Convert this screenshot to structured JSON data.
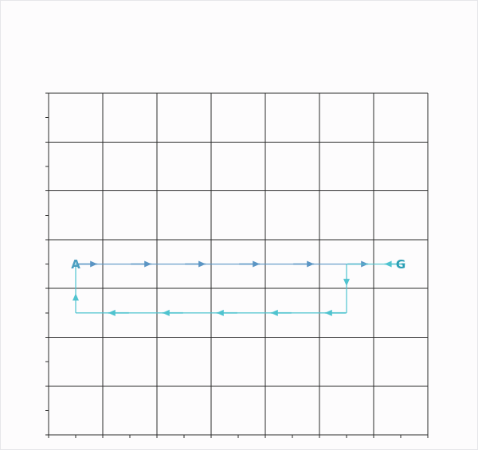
{
  "grid": {
    "columns": 7,
    "rows": 7,
    "minor_ticks_per_cell": 2
  },
  "markers": [
    {
      "label": "A",
      "col": 0.5,
      "row": 3.5,
      "color": "#4a9ec0"
    },
    {
      "label": "G",
      "col": 6.5,
      "row": 3.5,
      "color": "#2a9fb5"
    }
  ],
  "path": {
    "color_forward": "#5b95c4",
    "color_return": "#4fc3cf",
    "segments": [
      {
        "from": [
          0.5,
          3.5
        ],
        "to": [
          5.5,
          3.5
        ],
        "leg": "forward",
        "dir": "right",
        "arrows": [
          0.9,
          1.9,
          2.9,
          3.9,
          4.9,
          5.9
        ]
      },
      {
        "from": [
          6.5,
          3.5
        ],
        "to": [
          5.5,
          3.5
        ],
        "leg": "return",
        "dir": "left",
        "arrows": [
          6.2
        ]
      },
      {
        "from": [
          5.5,
          3.5
        ],
        "to": [
          5.5,
          4.5
        ],
        "leg": "return",
        "dir": "down",
        "arrows": [
          3.95
        ]
      },
      {
        "from": [
          5.5,
          4.5
        ],
        "to": [
          0.5,
          4.5
        ],
        "leg": "return",
        "dir": "left",
        "arrows": [
          5.1,
          4.1,
          3.1,
          2.1,
          1.1
        ]
      },
      {
        "from": [
          0.5,
          4.5
        ],
        "to": [
          0.5,
          3.5
        ],
        "leg": "return",
        "dir": "up",
        "arrows": [
          4.1
        ]
      }
    ]
  }
}
